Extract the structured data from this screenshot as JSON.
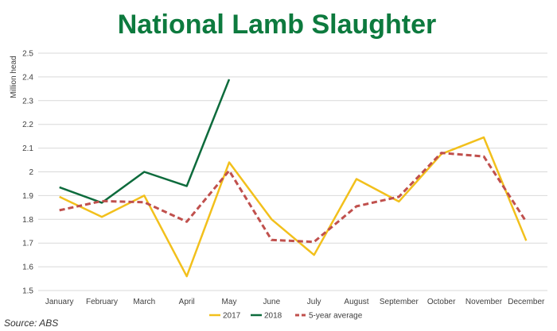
{
  "chart_data": {
    "type": "line",
    "title": "National Lamb Slaughter",
    "ylabel": "Million head",
    "xlabel": "",
    "categories": [
      "January",
      "February",
      "March",
      "April",
      "May",
      "June",
      "July",
      "August",
      "September",
      "October",
      "November",
      "December"
    ],
    "ylim": [
      1.5,
      2.5
    ],
    "yticks": [
      1.5,
      1.6,
      1.7,
      1.8,
      1.9,
      2,
      2.1,
      2.2,
      2.3,
      2.4,
      2.5
    ],
    "grid": true,
    "legend_position": "bottom",
    "series": [
      {
        "name": "2017",
        "color": "#f2c01c",
        "dash": false,
        "values": [
          1.895,
          1.81,
          1.9,
          1.56,
          2.04,
          1.8,
          1.65,
          1.97,
          1.875,
          2.075,
          2.145,
          1.71
        ]
      },
      {
        "name": "2018",
        "color": "#0d6b3c",
        "dash": false,
        "values": [
          1.935,
          1.87,
          2.0,
          1.94,
          2.39,
          null,
          null,
          null,
          null,
          null,
          null,
          null
        ]
      },
      {
        "name": "5-year average",
        "color": "#c0504d",
        "dash": true,
        "values": [
          1.838,
          1.877,
          1.872,
          1.79,
          2.005,
          1.713,
          1.705,
          1.855,
          1.895,
          2.08,
          2.065,
          1.79
        ]
      }
    ],
    "source": "Source: ABS"
  },
  "colors": {
    "title": "#0d7a3e",
    "grid": "#d9d9d9",
    "text": "#404040"
  }
}
